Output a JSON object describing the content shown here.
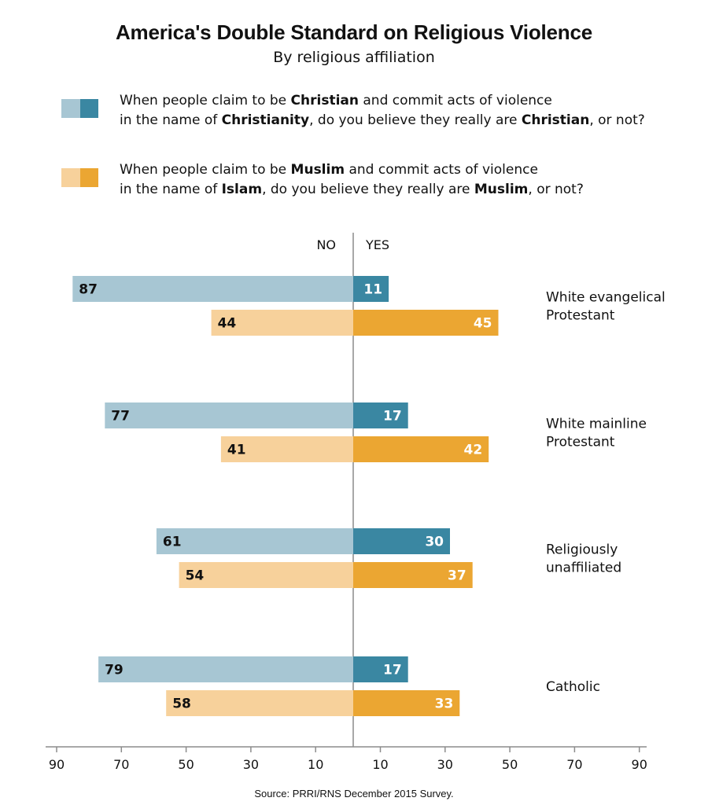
{
  "title": "America's Double Standard on Religious Violence",
  "subtitle": "By religious affiliation",
  "legend": [
    {
      "parts": [
        {
          "text": "When people claim to be ",
          "bold": false
        },
        {
          "text": "Christian",
          "bold": true
        },
        {
          "text": " and commit acts of violence",
          "bold": false
        },
        {
          "text": "\n",
          "bold": false
        },
        {
          "text": "in the name of ",
          "bold": false
        },
        {
          "text": "Christianity",
          "bold": true
        },
        {
          "text": ", do you believe they really are ",
          "bold": false
        },
        {
          "text": "Christian",
          "bold": true
        },
        {
          "text": ", or not?",
          "bold": false
        }
      ],
      "colors": {
        "no": "#a7c6d3",
        "yes": "#3a87a2"
      }
    },
    {
      "parts": [
        {
          "text": "When people claim to be ",
          "bold": false
        },
        {
          "text": "Muslim",
          "bold": true
        },
        {
          "text": " and commit acts of violence",
          "bold": false
        },
        {
          "text": "\n",
          "bold": false
        },
        {
          "text": "in the name of ",
          "bold": false
        },
        {
          "text": "Islam",
          "bold": true
        },
        {
          "text": ", do you believe they really are ",
          "bold": false
        },
        {
          "text": "Muslim",
          "bold": true
        },
        {
          "text": ", or not?",
          "bold": false
        }
      ],
      "colors": {
        "no": "#f7d19b",
        "yes": "#eba632"
      }
    }
  ],
  "chart_data": {
    "type": "bar",
    "orientation": "horizontal-diverging",
    "side_labels": {
      "no": "NO",
      "yes": "YES"
    },
    "categories": [
      [
        "White evangelical",
        "Protestant"
      ],
      [
        "White mainline",
        "Protestant"
      ],
      [
        "Religiously",
        "unaffiliated"
      ],
      [
        "Catholic"
      ]
    ],
    "series": [
      {
        "no": [
          87,
          77,
          61,
          79
        ],
        "yes": [
          11,
          17,
          30,
          17
        ]
      },
      {
        "no": [
          44,
          41,
          54,
          58
        ],
        "yes": [
          45,
          42,
          37,
          33
        ]
      }
    ],
    "x_ticks": [
      "90",
      "70",
      "50",
      "30",
      "10",
      "10",
      "30",
      "50",
      "70",
      "90"
    ],
    "xlim": [
      -90,
      90
    ],
    "grid": false
  },
  "source": "Source: PRRI/RNS December 2015 Survey."
}
